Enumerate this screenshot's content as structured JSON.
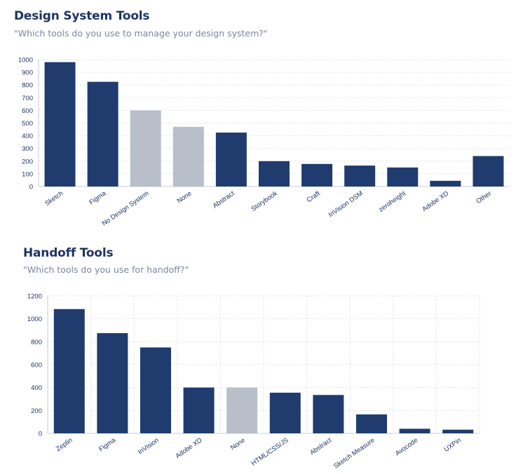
{
  "chart_data": [
    {
      "type": "bar",
      "title": "Design System Tools",
      "subtitle": "\"Which tools do you use to manage your design system?\"",
      "categories": [
        "Sketch",
        "Figma",
        "No Design System",
        "None",
        "Abstract",
        "Storybook",
        "Craft",
        "InVision DSM",
        "zeroheight",
        "Adobe XD",
        "Other"
      ],
      "values": [
        980,
        825,
        600,
        470,
        425,
        200,
        178,
        165,
        150,
        45,
        240
      ],
      "highlight_categories": [
        "No Design System",
        "None"
      ],
      "ylim": [
        0,
        1000
      ],
      "yticks": [
        0,
        100,
        200,
        300,
        400,
        500,
        600,
        700,
        800,
        900,
        1000
      ],
      "grid": "horizontal"
    },
    {
      "type": "bar",
      "title": "Handoff Tools",
      "subtitle": "\"Which tools do you use for handoff?\"",
      "categories": [
        "Zeplin",
        "Figma",
        "InVision",
        "Adobe XD",
        "None",
        "HTML/CSS/JS",
        "Abstract",
        "Sketch Measure",
        "Avocode",
        "UXPin"
      ],
      "values": [
        1085,
        875,
        750,
        400,
        400,
        355,
        335,
        165,
        40,
        32
      ],
      "highlight_categories": [
        "None"
      ],
      "ylim": [
        0,
        1200
      ],
      "yticks": [
        0,
        200,
        400,
        600,
        800,
        1000,
        1200
      ],
      "grid": "both"
    }
  ],
  "colors": {
    "primary": "#203c6e",
    "muted": "#b8bfcb",
    "text": "#1f3463",
    "grid": "#e4e7ec",
    "axis": "#c7ccd5"
  }
}
